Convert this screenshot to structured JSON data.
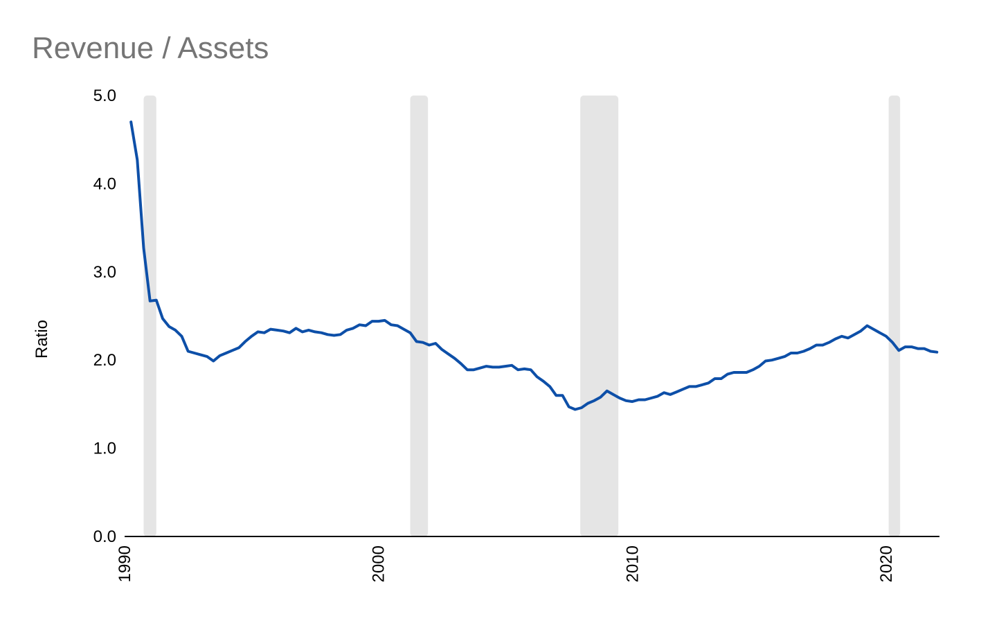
{
  "chart_data": {
    "type": "line",
    "title": "Revenue / Assets",
    "xlabel": "",
    "ylabel": "Ratio",
    "xlim": [
      1990,
      2022.1
    ],
    "ylim": [
      0,
      5
    ],
    "y_ticks": [
      "0.0",
      "1.0",
      "2.0",
      "3.0",
      "4.0",
      "5.0"
    ],
    "x_ticks": [
      "1990",
      "2000",
      "2010",
      "2020"
    ],
    "grid": false,
    "legend": "none",
    "colors": {
      "line": "#0d4fa8",
      "shading": "#e5e5e5",
      "title": "#757575",
      "axis": "#000000"
    },
    "shaded_periods": [
      [
        1990.75,
        1991.25
      ],
      [
        2001.25,
        2001.95
      ],
      [
        2007.95,
        2009.45
      ],
      [
        2020.1,
        2020.55
      ]
    ],
    "series": [
      {
        "x": [
          1990.25,
          1990.5,
          1990.75,
          1991.0,
          1991.25,
          1991.5,
          1991.75,
          1992.0,
          1992.25,
          1992.5,
          1992.75,
          1993.0,
          1993.25,
          1993.5,
          1993.75,
          1994.0,
          1994.25,
          1994.5,
          1994.75,
          1995.0,
          1995.25,
          1995.5,
          1995.75,
          1996.0,
          1996.25,
          1996.5,
          1996.75,
          1997.0,
          1997.25,
          1997.5,
          1997.75,
          1998.0,
          1998.25,
          1998.5,
          1998.75,
          1999.0,
          1999.25,
          1999.5,
          1999.75,
          2000.0,
          2000.25,
          2000.5,
          2000.75,
          2001.0,
          2001.25,
          2001.5,
          2001.75,
          2002.0,
          2002.25,
          2002.5,
          2002.75,
          2003.0,
          2003.25,
          2003.5,
          2003.75,
          2004.0,
          2004.25,
          2004.5,
          2004.75,
          2005.0,
          2005.25,
          2005.5,
          2005.75,
          2006.0,
          2006.25,
          2006.5,
          2006.75,
          2007.0,
          2007.25,
          2007.5,
          2007.75,
          2008.0,
          2008.25,
          2008.5,
          2008.75,
          2009.0,
          2009.25,
          2009.5,
          2009.75,
          2010.0,
          2010.25,
          2010.5,
          2010.75,
          2011.0,
          2011.25,
          2011.5,
          2011.75,
          2012.0,
          2012.25,
          2012.5,
          2012.75,
          2013.0,
          2013.25,
          2013.5,
          2013.75,
          2014.0,
          2014.25,
          2014.5,
          2014.75,
          2015.0,
          2015.25,
          2015.5,
          2015.75,
          2016.0,
          2016.25,
          2016.5,
          2016.75,
          2017.0,
          2017.25,
          2017.5,
          2017.75,
          2018.0,
          2018.25,
          2018.5,
          2018.75,
          2019.0,
          2019.25,
          2019.5,
          2019.75,
          2020.0,
          2020.25,
          2020.5,
          2020.75,
          2021.0,
          2021.25,
          2021.5,
          2021.75,
          2022.0
        ],
        "values": [
          4.7,
          4.27,
          3.27,
          2.67,
          2.68,
          2.47,
          2.38,
          2.34,
          2.27,
          2.1,
          2.08,
          2.06,
          2.04,
          1.99,
          2.05,
          2.08,
          2.11,
          2.14,
          2.21,
          2.27,
          2.32,
          2.31,
          2.35,
          2.34,
          2.33,
          2.31,
          2.36,
          2.32,
          2.34,
          2.32,
          2.31,
          2.29,
          2.28,
          2.29,
          2.34,
          2.36,
          2.4,
          2.39,
          2.44,
          2.44,
          2.45,
          2.4,
          2.39,
          2.35,
          2.31,
          2.21,
          2.2,
          2.17,
          2.19,
          2.12,
          2.07,
          2.02,
          1.96,
          1.89,
          1.89,
          1.91,
          1.93,
          1.92,
          1.92,
          1.93,
          1.94,
          1.89,
          1.9,
          1.89,
          1.81,
          1.76,
          1.7,
          1.6,
          1.6,
          1.47,
          1.44,
          1.46,
          1.51,
          1.54,
          1.58,
          1.65,
          1.61,
          1.57,
          1.54,
          1.53,
          1.55,
          1.55,
          1.57,
          1.59,
          1.63,
          1.61,
          1.64,
          1.67,
          1.7,
          1.7,
          1.72,
          1.74,
          1.79,
          1.79,
          1.84,
          1.86,
          1.86,
          1.86,
          1.89,
          1.93,
          1.99,
          2.0,
          2.02,
          2.04,
          2.08,
          2.08,
          2.1,
          2.13,
          2.17,
          2.17,
          2.2,
          2.24,
          2.27,
          2.25,
          2.29,
          2.33,
          2.39,
          2.35,
          2.31,
          2.27,
          2.2,
          2.11,
          2.15,
          2.15,
          2.13,
          2.13,
          2.1,
          2.09
        ]
      }
    ]
  }
}
